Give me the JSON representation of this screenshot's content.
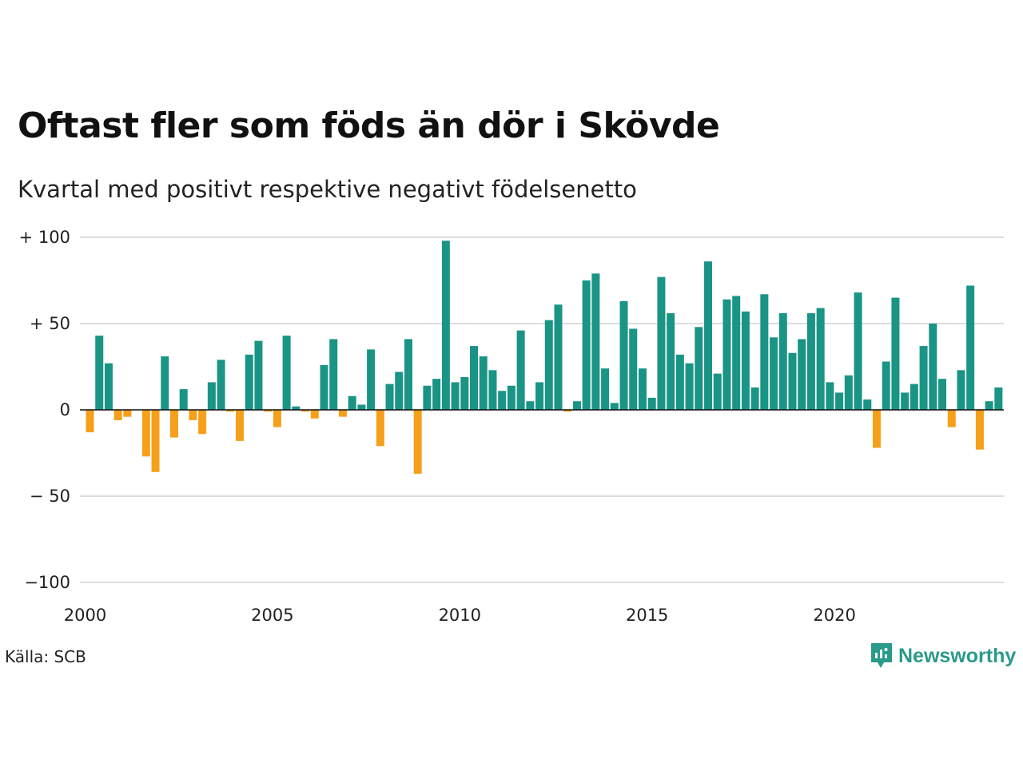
{
  "header": {
    "title": "Oftast fler som föds än dör i Skövde",
    "subtitle": "Kvartal med positivt respektive negativt födelsenetto"
  },
  "footer": {
    "source": "Källa: SCB",
    "brand": "Newsworthy",
    "brand_icon": "newsworthy-logo-icon"
  },
  "colors": {
    "positive": "#1a9485",
    "negative": "#f5a01a",
    "brand": "#2a9a8a",
    "grid": "#dddddd"
  },
  "chart_data": {
    "type": "bar",
    "title": "Oftast fler som föds än dör i Skövde",
    "subtitle": "Kvartal med positivt respektive negativt födelsenetto",
    "xlabel": "",
    "ylabel": "",
    "x_start": "2000 Q1",
    "frequency": "quarterly",
    "ylim": [
      -100,
      100
    ],
    "yticks": [
      {
        "value": 100,
        "label": "+ 100"
      },
      {
        "value": 50,
        "label": "+  50"
      },
      {
        "value": 0,
        "label": "0"
      },
      {
        "value": -50,
        "label": "− 50"
      },
      {
        "value": -100,
        "label": "−100"
      }
    ],
    "xticks": [
      "2000",
      "2005",
      "2010",
      "2015",
      "2020"
    ],
    "grid": true,
    "legend": "none",
    "values": [
      -13,
      43,
      27,
      -6,
      -4,
      0,
      -27,
      -36,
      31,
      -16,
      12,
      -6,
      -14,
      16,
      29,
      -1,
      -18,
      32,
      40,
      -1,
      -10,
      43,
      2,
      -1,
      -5,
      26,
      41,
      -4,
      8,
      3,
      35,
      -21,
      15,
      22,
      41,
      -37,
      14,
      18,
      98,
      16,
      19,
      37,
      31,
      23,
      11,
      14,
      46,
      5,
      16,
      52,
      61,
      -1,
      5,
      75,
      79,
      24,
      4,
      63,
      47,
      24,
      7,
      77,
      56,
      32,
      27,
      48,
      86,
      21,
      64,
      66,
      57,
      13,
      67,
      42,
      56,
      33,
      41,
      56,
      59,
      16,
      10,
      20,
      68,
      6,
      -22,
      28,
      65,
      10,
      15,
      37,
      50,
      18,
      -10,
      23,
      72,
      -23,
      5,
      13
    ]
  }
}
